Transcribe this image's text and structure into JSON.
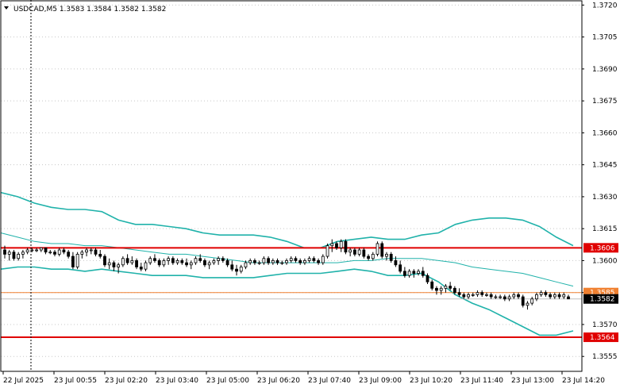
{
  "header": {
    "text": "USDCAD,M5  1.3583 1.3584 1.3582 1.3582",
    "arrow": "triangle-down-icon"
  },
  "chart_data": {
    "type": "candlestick",
    "title": "USDCAD,M5  1.3583 1.3584 1.3582 1.3582",
    "ylim": [
      1.3548,
      1.3722
    ],
    "y_ticks": [
      "1.3720",
      "1.3705",
      "1.3690",
      "1.3675",
      "1.3660",
      "1.3645",
      "1.3630",
      "1.3615",
      "1.3600",
      "1.3585",
      "1.3570",
      "1.3555"
    ],
    "x_ticks": [
      "22 Jul 2025",
      "23 Jul 00:55",
      "23 Jul 02:20",
      "23 Jul 03:40",
      "23 Jul 05:00",
      "23 Jul 06:20",
      "23 Jul 07:40",
      "23 Jul 09:00",
      "23 Jul 10:20",
      "23 Jul 11:40",
      "23 Jul 13:00",
      "23 Jul 14:20"
    ],
    "levels": [
      {
        "price": 1.3606,
        "label": "1.3606",
        "color": "#e00000"
      },
      {
        "price": 1.3564,
        "label": "1.3564",
        "color": "#e00000"
      },
      {
        "price": 1.3585,
        "label": "1.3585",
        "color": "#f08030"
      },
      {
        "price": 1.3582,
        "label": "1.3582",
        "color": "#000000",
        "bid": true
      }
    ],
    "indicator": {
      "name": "Bollinger Bands",
      "color": "#20b2aa",
      "upper": [
        1.3632,
        1.363,
        1.3627,
        1.3625,
        1.3624,
        1.3624,
        1.3623,
        1.3619,
        1.3617,
        1.3617,
        1.3616,
        1.3615,
        1.3613,
        1.3612,
        1.3612,
        1.3612,
        1.3611,
        1.3609,
        1.3606,
        1.3606,
        1.3609,
        1.361,
        1.3611,
        1.361,
        1.361,
        1.3612,
        1.3613,
        1.3617,
        1.3619,
        1.362,
        1.362,
        1.3619,
        1.3616,
        1.3611,
        1.3607
      ],
      "middle": [
        1.3613,
        1.3611,
        1.3609,
        1.3608,
        1.3608,
        1.3607,
        1.3607,
        1.3606,
        1.3605,
        1.3604,
        1.3603,
        1.3603,
        1.3602,
        1.3601,
        1.36,
        1.3599,
        1.3599,
        1.3599,
        1.3599,
        1.3599,
        1.3599,
        1.36,
        1.36,
        1.3601,
        1.3601,
        1.3601,
        1.36,
        1.3599,
        1.3597,
        1.3596,
        1.3595,
        1.3594,
        1.3592,
        1.359,
        1.3588
      ],
      "lower": [
        1.3596,
        1.3597,
        1.3597,
        1.3596,
        1.3596,
        1.3595,
        1.3596,
        1.3595,
        1.3594,
        1.3593,
        1.3593,
        1.3593,
        1.3592,
        1.3592,
        1.3592,
        1.3592,
        1.3593,
        1.3594,
        1.3594,
        1.3594,
        1.3595,
        1.3596,
        1.3595,
        1.3593,
        1.3593,
        1.3594,
        1.359,
        1.3584,
        1.358,
        1.3577,
        1.3573,
        1.3569,
        1.3565,
        1.3565,
        1.3567
      ]
    },
    "candles": [
      {
        "o": 1.3605,
        "h": 1.3607,
        "l": 1.3601,
        "c": 1.3603
      },
      {
        "o": 1.3603,
        "h": 1.3605,
        "l": 1.36,
        "c": 1.3604
      },
      {
        "o": 1.3604,
        "h": 1.3605,
        "l": 1.36,
        "c": 1.3601
      },
      {
        "o": 1.3601,
        "h": 1.3604,
        "l": 1.36,
        "c": 1.3603
      },
      {
        "o": 1.3603,
        "h": 1.3605,
        "l": 1.3601,
        "c": 1.3604
      },
      {
        "o": 1.3604,
        "h": 1.3606,
        "l": 1.3603,
        "c": 1.3605
      },
      {
        "o": 1.3605,
        "h": 1.3606,
        "l": 1.3604,
        "c": 1.3605
      },
      {
        "o": 1.3605,
        "h": 1.3606,
        "l": 1.3604,
        "c": 1.3605
      },
      {
        "o": 1.3605,
        "h": 1.3606,
        "l": 1.3604,
        "c": 1.3606
      },
      {
        "o": 1.3606,
        "h": 1.3606,
        "l": 1.3603,
        "c": 1.3604
      },
      {
        "o": 1.3604,
        "h": 1.3605,
        "l": 1.3603,
        "c": 1.3604
      },
      {
        "o": 1.3604,
        "h": 1.3605,
        "l": 1.3602,
        "c": 1.3603
      },
      {
        "o": 1.3603,
        "h": 1.3606,
        "l": 1.3602,
        "c": 1.3605
      },
      {
        "o": 1.3605,
        "h": 1.3606,
        "l": 1.3603,
        "c": 1.3604
      },
      {
        "o": 1.3604,
        "h": 1.3605,
        "l": 1.3601,
        "c": 1.3602
      },
      {
        "o": 1.3602,
        "h": 1.3604,
        "l": 1.3596,
        "c": 1.3597
      },
      {
        "o": 1.3597,
        "h": 1.3604,
        "l": 1.3596,
        "c": 1.3603
      },
      {
        "o": 1.3603,
        "h": 1.3605,
        "l": 1.3601,
        "c": 1.3604
      },
      {
        "o": 1.3604,
        "h": 1.3606,
        "l": 1.3602,
        "c": 1.3605
      },
      {
        "o": 1.3605,
        "h": 1.3606,
        "l": 1.3603,
        "c": 1.3605
      },
      {
        "o": 1.3605,
        "h": 1.3606,
        "l": 1.3602,
        "c": 1.3603
      },
      {
        "o": 1.3603,
        "h": 1.3605,
        "l": 1.3601,
        "c": 1.3602
      },
      {
        "o": 1.3602,
        "h": 1.3603,
        "l": 1.3597,
        "c": 1.3598
      },
      {
        "o": 1.3598,
        "h": 1.3601,
        "l": 1.3596,
        "c": 1.3599
      },
      {
        "o": 1.3599,
        "h": 1.36,
        "l": 1.3595,
        "c": 1.3597
      },
      {
        "o": 1.3597,
        "h": 1.3599,
        "l": 1.3594,
        "c": 1.3598
      },
      {
        "o": 1.3598,
        "h": 1.3602,
        "l": 1.3597,
        "c": 1.3601
      },
      {
        "o": 1.3601,
        "h": 1.3603,
        "l": 1.3598,
        "c": 1.3599
      },
      {
        "o": 1.3599,
        "h": 1.3602,
        "l": 1.3598,
        "c": 1.36
      },
      {
        "o": 1.36,
        "h": 1.3601,
        "l": 1.3596,
        "c": 1.3597
      },
      {
        "o": 1.3597,
        "h": 1.3599,
        "l": 1.3595,
        "c": 1.3596
      },
      {
        "o": 1.3596,
        "h": 1.36,
        "l": 1.3595,
        "c": 1.3599
      },
      {
        "o": 1.3599,
        "h": 1.3602,
        "l": 1.3598,
        "c": 1.3601
      },
      {
        "o": 1.3601,
        "h": 1.3603,
        "l": 1.3599,
        "c": 1.36
      },
      {
        "o": 1.36,
        "h": 1.3601,
        "l": 1.3597,
        "c": 1.3598
      },
      {
        "o": 1.3598,
        "h": 1.3601,
        "l": 1.3597,
        "c": 1.36
      },
      {
        "o": 1.36,
        "h": 1.3602,
        "l": 1.3598,
        "c": 1.3601
      },
      {
        "o": 1.3601,
        "h": 1.3602,
        "l": 1.3598,
        "c": 1.3599
      },
      {
        "o": 1.3599,
        "h": 1.3601,
        "l": 1.3598,
        "c": 1.36
      },
      {
        "o": 1.36,
        "h": 1.3601,
        "l": 1.3598,
        "c": 1.3599
      },
      {
        "o": 1.3599,
        "h": 1.3601,
        "l": 1.3597,
        "c": 1.3598
      },
      {
        "o": 1.3598,
        "h": 1.36,
        "l": 1.3596,
        "c": 1.3599
      },
      {
        "o": 1.3599,
        "h": 1.3602,
        "l": 1.3598,
        "c": 1.3601
      },
      {
        "o": 1.3601,
        "h": 1.3603,
        "l": 1.3599,
        "c": 1.36
      },
      {
        "o": 1.36,
        "h": 1.3601,
        "l": 1.3597,
        "c": 1.3598
      },
      {
        "o": 1.3598,
        "h": 1.36,
        "l": 1.3596,
        "c": 1.3599
      },
      {
        "o": 1.3599,
        "h": 1.3601,
        "l": 1.3598,
        "c": 1.36
      },
      {
        "o": 1.36,
        "h": 1.3602,
        "l": 1.3598,
        "c": 1.3601
      },
      {
        "o": 1.3601,
        "h": 1.3602,
        "l": 1.3599,
        "c": 1.36
      },
      {
        "o": 1.36,
        "h": 1.3601,
        "l": 1.3597,
        "c": 1.3598
      },
      {
        "o": 1.3598,
        "h": 1.36,
        "l": 1.3595,
        "c": 1.3596
      },
      {
        "o": 1.3596,
        "h": 1.3598,
        "l": 1.3593,
        "c": 1.3595
      },
      {
        "o": 1.3595,
        "h": 1.3598,
        "l": 1.3594,
        "c": 1.3597
      },
      {
        "o": 1.3597,
        "h": 1.36,
        "l": 1.3596,
        "c": 1.3599
      },
      {
        "o": 1.3599,
        "h": 1.3601,
        "l": 1.3598,
        "c": 1.36
      },
      {
        "o": 1.36,
        "h": 1.3601,
        "l": 1.3598,
        "c": 1.3599
      },
      {
        "o": 1.3599,
        "h": 1.36,
        "l": 1.3598,
        "c": 1.3599
      },
      {
        "o": 1.3599,
        "h": 1.3602,
        "l": 1.3598,
        "c": 1.3601
      },
      {
        "o": 1.3601,
        "h": 1.3602,
        "l": 1.3598,
        "c": 1.3599
      },
      {
        "o": 1.3599,
        "h": 1.3601,
        "l": 1.3598,
        "c": 1.36
      },
      {
        "o": 1.36,
        "h": 1.3601,
        "l": 1.3598,
        "c": 1.3599
      },
      {
        "o": 1.3599,
        "h": 1.36,
        "l": 1.3598,
        "c": 1.3599
      },
      {
        "o": 1.3599,
        "h": 1.3601,
        "l": 1.3598,
        "c": 1.36
      },
      {
        "o": 1.36,
        "h": 1.3602,
        "l": 1.3599,
        "c": 1.3601
      },
      {
        "o": 1.3601,
        "h": 1.3602,
        "l": 1.3599,
        "c": 1.36
      },
      {
        "o": 1.36,
        "h": 1.3601,
        "l": 1.3598,
        "c": 1.3599
      },
      {
        "o": 1.3599,
        "h": 1.3601,
        "l": 1.3598,
        "c": 1.36
      },
      {
        "o": 1.36,
        "h": 1.3602,
        "l": 1.3599,
        "c": 1.3601
      },
      {
        "o": 1.3601,
        "h": 1.3602,
        "l": 1.3599,
        "c": 1.36
      },
      {
        "o": 1.36,
        "h": 1.3601,
        "l": 1.3598,
        "c": 1.3599
      },
      {
        "o": 1.3599,
        "h": 1.3603,
        "l": 1.3598,
        "c": 1.3602
      },
      {
        "o": 1.3602,
        "h": 1.3608,
        "l": 1.3601,
        "c": 1.3607
      },
      {
        "o": 1.3607,
        "h": 1.361,
        "l": 1.3604,
        "c": 1.3608
      },
      {
        "o": 1.3608,
        "h": 1.3609,
        "l": 1.3605,
        "c": 1.3606
      },
      {
        "o": 1.3606,
        "h": 1.361,
        "l": 1.3604,
        "c": 1.3609
      },
      {
        "o": 1.3609,
        "h": 1.361,
        "l": 1.3603,
        "c": 1.3604
      },
      {
        "o": 1.3604,
        "h": 1.3606,
        "l": 1.3602,
        "c": 1.3605
      },
      {
        "o": 1.3605,
        "h": 1.3606,
        "l": 1.3602,
        "c": 1.3603
      },
      {
        "o": 1.3603,
        "h": 1.3606,
        "l": 1.3602,
        "c": 1.3605
      },
      {
        "o": 1.3605,
        "h": 1.3606,
        "l": 1.3601,
        "c": 1.3602
      },
      {
        "o": 1.3602,
        "h": 1.3603,
        "l": 1.36,
        "c": 1.3601
      },
      {
        "o": 1.3601,
        "h": 1.3604,
        "l": 1.36,
        "c": 1.3603
      },
      {
        "o": 1.3603,
        "h": 1.3609,
        "l": 1.3602,
        "c": 1.3608
      },
      {
        "o": 1.3608,
        "h": 1.3609,
        "l": 1.3601,
        "c": 1.3602
      },
      {
        "o": 1.3602,
        "h": 1.3604,
        "l": 1.36,
        "c": 1.3603
      },
      {
        "o": 1.3603,
        "h": 1.3604,
        "l": 1.3599,
        "c": 1.36
      },
      {
        "o": 1.36,
        "h": 1.3602,
        "l": 1.3597,
        "c": 1.3598
      },
      {
        "o": 1.3598,
        "h": 1.36,
        "l": 1.3594,
        "c": 1.3595
      },
      {
        "o": 1.3595,
        "h": 1.3597,
        "l": 1.3592,
        "c": 1.3593
      },
      {
        "o": 1.3593,
        "h": 1.3596,
        "l": 1.3592,
        "c": 1.3595
      },
      {
        "o": 1.3595,
        "h": 1.3596,
        "l": 1.3592,
        "c": 1.3594
      },
      {
        "o": 1.3594,
        "h": 1.3596,
        "l": 1.3593,
        "c": 1.3595
      },
      {
        "o": 1.3595,
        "h": 1.3597,
        "l": 1.3592,
        "c": 1.3593
      },
      {
        "o": 1.3593,
        "h": 1.3594,
        "l": 1.3589,
        "c": 1.359
      },
      {
        "o": 1.359,
        "h": 1.3591,
        "l": 1.3586,
        "c": 1.3587
      },
      {
        "o": 1.3587,
        "h": 1.3588,
        "l": 1.3584,
        "c": 1.3586
      },
      {
        "o": 1.3586,
        "h": 1.3588,
        "l": 1.3584,
        "c": 1.3587
      },
      {
        "o": 1.3587,
        "h": 1.3589,
        "l": 1.3585,
        "c": 1.3588
      },
      {
        "o": 1.3588,
        "h": 1.359,
        "l": 1.3586,
        "c": 1.3587
      },
      {
        "o": 1.3587,
        "h": 1.3588,
        "l": 1.3584,
        "c": 1.3585
      },
      {
        "o": 1.3585,
        "h": 1.3587,
        "l": 1.3583,
        "c": 1.3584
      },
      {
        "o": 1.3584,
        "h": 1.3585,
        "l": 1.3582,
        "c": 1.3583
      },
      {
        "o": 1.3583,
        "h": 1.3585,
        "l": 1.3582,
        "c": 1.3584
      },
      {
        "o": 1.3584,
        "h": 1.3585,
        "l": 1.3583,
        "c": 1.3584
      },
      {
        "o": 1.3584,
        "h": 1.3586,
        "l": 1.3583,
        "c": 1.3585
      },
      {
        "o": 1.3585,
        "h": 1.3586,
        "l": 1.3583,
        "c": 1.3584
      },
      {
        "o": 1.3584,
        "h": 1.3585,
        "l": 1.3583,
        "c": 1.3584
      },
      {
        "o": 1.3584,
        "h": 1.3585,
        "l": 1.3582,
        "c": 1.3583
      },
      {
        "o": 1.3583,
        "h": 1.3584,
        "l": 1.3582,
        "c": 1.3583
      },
      {
        "o": 1.3583,
        "h": 1.3584,
        "l": 1.3582,
        "c": 1.3583
      },
      {
        "o": 1.3583,
        "h": 1.3584,
        "l": 1.3581,
        "c": 1.3582
      },
      {
        "o": 1.3582,
        "h": 1.3584,
        "l": 1.3581,
        "c": 1.3583
      },
      {
        "o": 1.3583,
        "h": 1.3585,
        "l": 1.3582,
        "c": 1.3584
      },
      {
        "o": 1.3584,
        "h": 1.3585,
        "l": 1.3582,
        "c": 1.3583
      },
      {
        "o": 1.3583,
        "h": 1.3584,
        "l": 1.3578,
        "c": 1.3579
      },
      {
        "o": 1.3579,
        "h": 1.3581,
        "l": 1.3577,
        "c": 1.358
      },
      {
        "o": 1.358,
        "h": 1.3583,
        "l": 1.3579,
        "c": 1.3582
      },
      {
        "o": 1.3582,
        "h": 1.3585,
        "l": 1.3581,
        "c": 1.3584
      },
      {
        "o": 1.3584,
        "h": 1.3586,
        "l": 1.3583,
        "c": 1.3585
      },
      {
        "o": 1.3585,
        "h": 1.3586,
        "l": 1.3583,
        "c": 1.3584
      },
      {
        "o": 1.3584,
        "h": 1.3585,
        "l": 1.3582,
        "c": 1.3583
      },
      {
        "o": 1.3583,
        "h": 1.3585,
        "l": 1.3582,
        "c": 1.3584
      },
      {
        "o": 1.3584,
        "h": 1.3585,
        "l": 1.3582,
        "c": 1.3583
      },
      {
        "o": 1.3583,
        "h": 1.3585,
        "l": 1.3582,
        "c": 1.3584
      },
      {
        "o": 1.3583,
        "h": 1.3584,
        "l": 1.3582,
        "c": 1.3582
      }
    ]
  }
}
